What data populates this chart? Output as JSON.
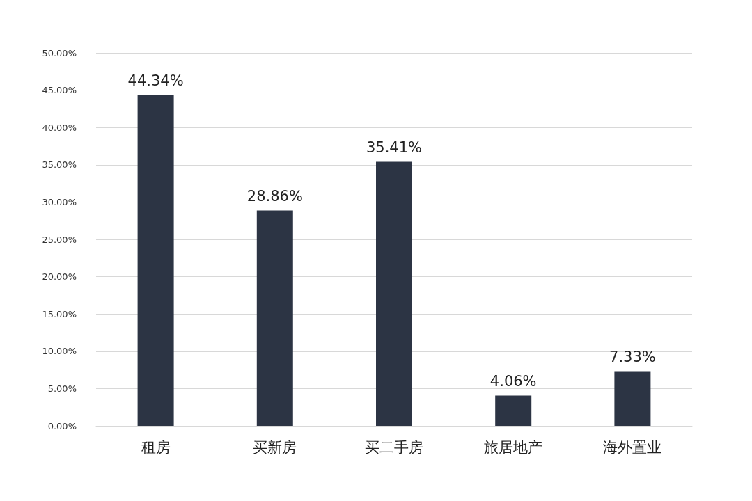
{
  "chart_data": {
    "type": "bar",
    "categories": [
      "租房",
      "买新房",
      "买二手房",
      "旅居地产",
      "海外置业"
    ],
    "values": [
      44.34,
      28.86,
      35.41,
      4.06,
      7.33
    ],
    "value_labels": [
      "44.34%",
      "28.86%",
      "35.41%",
      "4.06%",
      "7.33%"
    ],
    "color": "#2c3444",
    "ylim": [
      0,
      50
    ],
    "yticks": [
      {
        "value": 0,
        "label": "0.00%"
      },
      {
        "value": 5,
        "label": "5.00%"
      },
      {
        "value": 10,
        "label": "10.00%"
      },
      {
        "value": 15,
        "label": "15.00%"
      },
      {
        "value": 20,
        "label": "20.00%"
      },
      {
        "value": 25,
        "label": "25.00%"
      },
      {
        "value": 30,
        "label": "30.00%"
      },
      {
        "value": 35,
        "label": "35.00%"
      },
      {
        "value": 40,
        "label": "40.00%"
      },
      {
        "value": 45,
        "label": "45.00%"
      },
      {
        "value": 50,
        "label": "50.00%"
      }
    ],
    "grid": "y"
  }
}
